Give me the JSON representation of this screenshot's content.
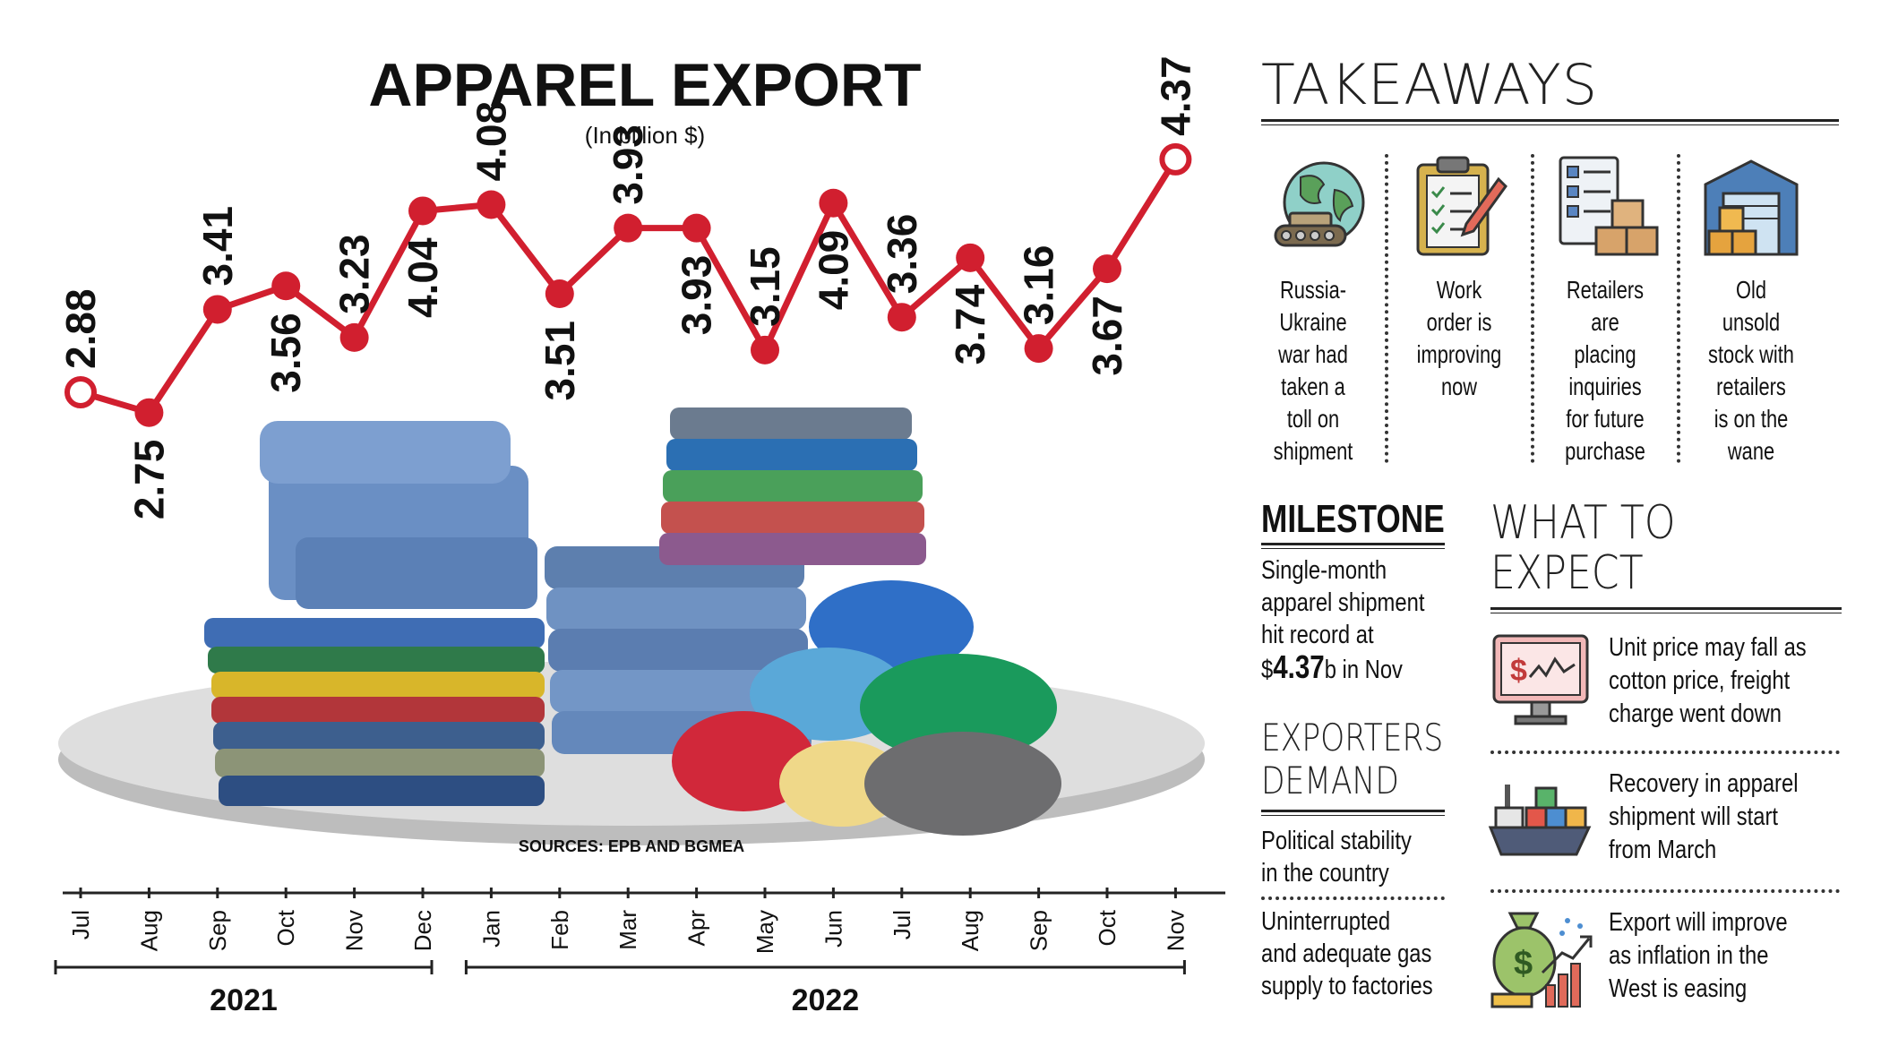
{
  "chart_data": {
    "type": "line",
    "title": "APPAREL EXPORT",
    "subtitle": "(In billion $)",
    "source": "SOURCES: EPB AND BGMEA",
    "categories": [
      "Jul",
      "Aug",
      "Sep",
      "Oct",
      "Nov",
      "Dec",
      "Jan",
      "Feb",
      "Mar",
      "Apr",
      "May",
      "Jun",
      "Jul",
      "Aug",
      "Sep",
      "Oct",
      "Nov"
    ],
    "years": [
      {
        "label": "2021",
        "from": 0,
        "to": 5
      },
      {
        "label": "2022",
        "from": 6,
        "to": 16
      }
    ],
    "series": [
      {
        "values": [
          2.88,
          2.75,
          3.41,
          3.56,
          3.23,
          4.04,
          4.08,
          3.51,
          3.93,
          3.93,
          3.15,
          4.09,
          3.36,
          3.74,
          3.16,
          3.67,
          4.37
        ],
        "labels": [
          "2.88",
          "2.75",
          "3.41",
          "3.56",
          "3.23",
          "4.04",
          "4.08",
          "3.51",
          "3.93",
          "3.93",
          "3.15",
          "4.09",
          "3.36",
          "3.74",
          "3.16",
          "3.67",
          "4.37"
        ]
      }
    ],
    "color": "#d11f2f"
  },
  "takeaways": {
    "title": "TAKEAWAYS",
    "items": [
      {
        "icon": "globe-tank-icon",
        "lines": [
          "Russia-",
          "Ukraine",
          "war had",
          "taken a",
          "toll on",
          "shipment"
        ]
      },
      {
        "icon": "clipboard-checklist-icon",
        "lines": [
          "Work",
          "order is",
          "improving",
          "now"
        ]
      },
      {
        "icon": "checklist-boxes-icon",
        "lines": [
          "Retailers",
          "are",
          "placing",
          "inquiries",
          "for future",
          "purchase"
        ]
      },
      {
        "icon": "warehouse-icon",
        "lines": [
          "Old",
          "unsold",
          "stock with",
          "retailers",
          "is on the",
          "wane"
        ]
      }
    ]
  },
  "milestone": {
    "title": "MILESTONE",
    "line1": "Single-month",
    "line2": "apparel shipment",
    "line3": "hit record at",
    "value_prefix": "$",
    "value": "4.37",
    "value_suffix": "b in Nov"
  },
  "exporters": {
    "title1": "EXPORTERS",
    "title2": "DEMAND",
    "items": [
      {
        "lines": [
          "Political stability",
          "in the country"
        ]
      },
      {
        "lines": [
          "Uninterrupted",
          "and adequate gas",
          "supply to factories"
        ]
      }
    ]
  },
  "expect": {
    "title1": "WHAT TO",
    "title2": "EXPECT",
    "items": [
      {
        "icon": "monitor-dollar-chart-icon",
        "lines": [
          "Unit price may fall as",
          "cotton price, freight",
          "charge went down"
        ]
      },
      {
        "icon": "cargo-ship-icon",
        "lines": [
          "Recovery in apparel",
          "shipment will start",
          "from March"
        ]
      },
      {
        "icon": "money-bag-growth-icon",
        "lines": [
          "Export will improve",
          "as inflation in the",
          "West is easing"
        ]
      }
    ]
  },
  "colors": {
    "accent": "#d11f2f",
    "text": "#111111",
    "rule": "#222222"
  }
}
